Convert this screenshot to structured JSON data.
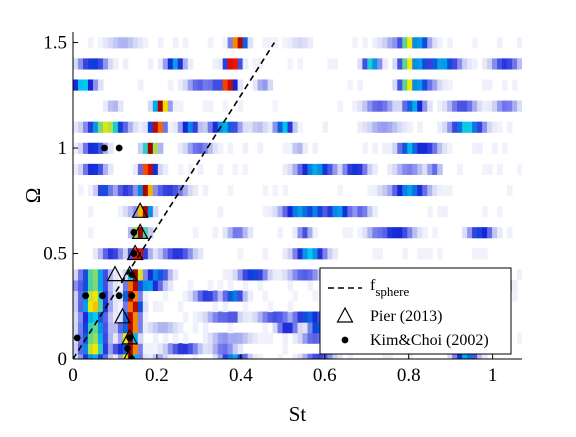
{
  "chart_data": {
    "type": "heatmap",
    "title": "",
    "xlabel": "St",
    "ylabel": "Ω",
    "xlim": [
      0,
      1.07
    ],
    "ylim": [
      0,
      1.55
    ],
    "xticks": [
      "0",
      "0.2",
      "0.4",
      "0.6",
      "0.8",
      "1"
    ],
    "xtick_values": [
      0,
      0.2,
      0.4,
      0.6,
      0.8,
      1.0
    ],
    "yticks": [
      "0",
      "0.5",
      "1",
      "1.5"
    ],
    "ytick_values": [
      0,
      0.5,
      1.0,
      1.5
    ],
    "colormap": [
      "#ffffff",
      "#d0d4f4",
      "#6d74ec",
      "#1423d6",
      "#00c8f0",
      "#f5e900",
      "#f51500",
      "#900000"
    ],
    "omega_rows": [
      0,
      0.05,
      0.1,
      0.15,
      0.2,
      0.25,
      0.3,
      0.35,
      0.4,
      0.5,
      0.6,
      0.7,
      0.8,
      0.9,
      1.0,
      1.1,
      1.2,
      1.3,
      1.4,
      1.5
    ],
    "dominant_peak_st": [
      0.135,
      0.14,
      0.135,
      0.14,
      0.14,
      0.145,
      0.14,
      0.145,
      0.15,
      0.155,
      0.16,
      0.17,
      0.175,
      0.18,
      0.185,
      0.2,
      0.21,
      0.37,
      0.38,
      0.395
    ],
    "series": [
      {
        "name": "f_sphere",
        "style": "dashed-line",
        "x": [
          0,
          0.48
        ],
        "y": [
          0,
          1.5
        ]
      },
      {
        "name": "Pier (2013)",
        "style": "open-triangle",
        "x": [
          0.132,
          0.135,
          0.118,
          0.1,
          0.135,
          0.148,
          0.16,
          0.16
        ],
        "y": [
          0.0,
          0.1,
          0.2,
          0.4,
          0.4,
          0.5,
          0.6,
          0.7
        ]
      },
      {
        "name": "Kim&Choi (2002)",
        "style": "filled-dot",
        "x": [
          0.14,
          0.13,
          0.135,
          0.14,
          0.14,
          0.145,
          0.145,
          0.075,
          0.11,
          0.01,
          0.03,
          0.07,
          0.11
        ],
        "y": [
          0.0,
          0.05,
          0.1,
          0.3,
          0.4,
          0.5,
          0.6,
          1.0,
          1.0,
          0.1,
          0.3,
          0.3,
          0.3
        ]
      }
    ],
    "legend": {
      "position": "bottom-right",
      "entries": [
        {
          "base": "f",
          "sub": "sphere"
        },
        {
          "label": "Pier (2013)"
        },
        {
          "label": "Kim&Choi (2002)"
        }
      ]
    },
    "grid": false
  }
}
